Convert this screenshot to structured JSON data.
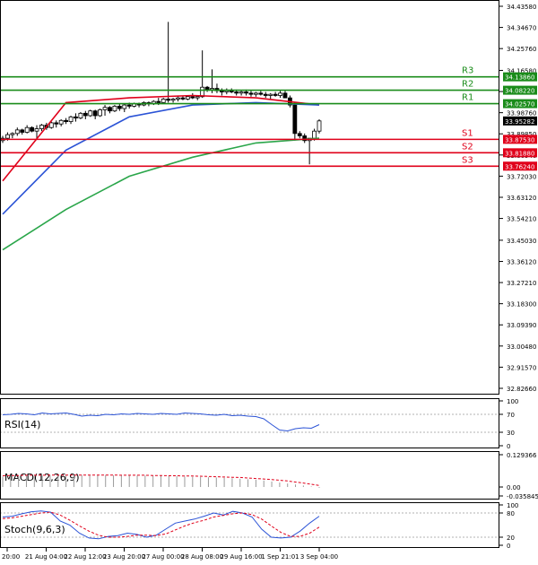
{
  "chart_data": [
    {
      "type": "candlestick",
      "price_axis_ticks": [
        "34.43580",
        "34.34670",
        "34.25760",
        "34.16580",
        "34.07670",
        "33.98760",
        "33.89850",
        "33.80940",
        "33.72030",
        "33.63120",
        "33.54210",
        "33.45030",
        "33.36120",
        "33.27210",
        "33.18300",
        "33.09390",
        "33.00480",
        "32.91570",
        "32.82660"
      ],
      "ylim": [
        32.8266,
        34.4358
      ],
      "current_price": {
        "value": 33.95282,
        "label": "33.95282"
      },
      "levels": [
        {
          "name": "R3",
          "value": 34.1386,
          "label": "34.13860",
          "color": "#1a8c1a"
        },
        {
          "name": "R2",
          "value": 34.0822,
          "label": "34.08220",
          "color": "#1a8c1a"
        },
        {
          "name": "R1",
          "value": 34.0257,
          "label": "34.02570",
          "color": "#1a8c1a"
        },
        {
          "name": "S1",
          "value": 33.8753,
          "label": "33.87530",
          "color": "#e0001a"
        },
        {
          "name": "S2",
          "value": 33.8188,
          "label": "33.81880",
          "color": "#e0001a"
        },
        {
          "name": "S3",
          "value": 33.7624,
          "label": "33.76240",
          "color": "#e0001a"
        }
      ],
      "x_tick_labels": [
        "20:00",
        "21 Aug 04:00",
        "22 Aug 12:00",
        "23 Aug 20:00",
        "27 Aug 00:00",
        "28 Aug 08:00",
        "29 Aug 16:00",
        "1 Sep 21:01",
        "3 Sep 04:00"
      ],
      "candles": [
        [
          33.87,
          33.89,
          33.86,
          33.88
        ],
        [
          33.88,
          33.905,
          33.87,
          33.895
        ],
        [
          33.895,
          33.905,
          33.88,
          33.9
        ],
        [
          33.9,
          33.925,
          33.89,
          33.915
        ],
        [
          33.915,
          33.92,
          33.895,
          33.905
        ],
        [
          33.905,
          33.935,
          33.9,
          33.925
        ],
        [
          33.925,
          33.93,
          33.905,
          33.91
        ],
        [
          33.91,
          33.935,
          33.88,
          33.92
        ],
        [
          33.92,
          33.94,
          33.91,
          33.935
        ],
        [
          33.935,
          33.945,
          33.915,
          33.925
        ],
        [
          33.925,
          33.95,
          33.92,
          33.945
        ],
        [
          33.945,
          33.955,
          33.925,
          33.94
        ],
        [
          33.94,
          33.96,
          33.93,
          33.955
        ],
        [
          33.955,
          33.965,
          33.94,
          33.95
        ],
        [
          33.95,
          33.975,
          33.94,
          33.97
        ],
        [
          33.97,
          33.985,
          33.95,
          33.965
        ],
        [
          33.965,
          33.99,
          33.96,
          33.985
        ],
        [
          33.985,
          33.995,
          33.96,
          33.975
        ],
        [
          33.975,
          34.0,
          33.97,
          33.995
        ],
        [
          33.995,
          34.0,
          33.96,
          33.975
        ],
        [
          33.975,
          34.005,
          33.97,
          34.0
        ],
        [
          34.0,
          34.02,
          33.975,
          34.01
        ],
        [
          34.01,
          34.015,
          33.985,
          33.995
        ],
        [
          33.995,
          34.02,
          33.99,
          34.015
        ],
        [
          34.015,
          34.025,
          33.995,
          34.005
        ],
        [
          34.005,
          34.025,
          33.99,
          34.02
        ],
        [
          34.02,
          34.03,
          34.005,
          34.015
        ],
        [
          34.015,
          34.03,
          34.01,
          34.025
        ],
        [
          34.025,
          34.03,
          34.01,
          34.02
        ],
        [
          34.02,
          34.035,
          34.015,
          34.03
        ],
        [
          34.03,
          34.035,
          34.015,
          34.025
        ],
        [
          34.025,
          34.04,
          34.02,
          34.035
        ],
        [
          34.035,
          34.05,
          34.02,
          34.03
        ],
        [
          34.03,
          34.05,
          34.025,
          34.045
        ],
        [
          34.045,
          34.37,
          34.03,
          34.04
        ],
        [
          34.04,
          34.05,
          34.03,
          34.045
        ],
        [
          34.045,
          34.06,
          34.035,
          34.05
        ],
        [
          34.05,
          34.06,
          34.04,
          34.045
        ],
        [
          34.045,
          34.06,
          34.04,
          34.055
        ],
        [
          34.055,
          34.07,
          34.045,
          34.05
        ],
        [
          34.05,
          34.06,
          34.04,
          34.055
        ],
        [
          34.055,
          34.25,
          34.05,
          34.095
        ],
        [
          34.095,
          34.1,
          34.075,
          34.085
        ],
        [
          34.085,
          34.17,
          34.07,
          34.09
        ],
        [
          34.09,
          34.11,
          34.07,
          34.08
        ],
        [
          34.08,
          34.09,
          34.06,
          34.075
        ],
        [
          34.075,
          34.09,
          34.065,
          34.08
        ],
        [
          34.08,
          34.09,
          34.07,
          34.075
        ],
        [
          34.075,
          34.085,
          34.06,
          34.07
        ],
        [
          34.07,
          34.08,
          34.06,
          34.075
        ],
        [
          34.075,
          34.085,
          34.06,
          34.07
        ],
        [
          34.07,
          34.08,
          34.055,
          34.065
        ],
        [
          34.065,
          34.075,
          34.055,
          34.07
        ],
        [
          34.07,
          34.08,
          34.06,
          34.065
        ],
        [
          34.065,
          34.075,
          34.05,
          34.06
        ],
        [
          34.06,
          34.07,
          34.045,
          34.065
        ],
        [
          34.065,
          34.075,
          34.055,
          34.06
        ],
        [
          34.06,
          34.08,
          34.05,
          34.07
        ],
        [
          34.07,
          34.08,
          34.06,
          34.05
        ],
        [
          34.05,
          34.06,
          34.01,
          34.02
        ],
        [
          34.02,
          34.03,
          33.87,
          33.9
        ],
        [
          33.9,
          33.91,
          33.88,
          33.89
        ],
        [
          33.89,
          33.9,
          33.86,
          33.87
        ],
        [
          33.87,
          33.88,
          33.77,
          33.88
        ],
        [
          33.88,
          33.92,
          33.87,
          33.91
        ],
        [
          33.91,
          33.96,
          33.9,
          33.953
        ]
      ],
      "moving_averages": [
        {
          "color": "#e0001a",
          "values": [
            33.7,
            34.03,
            34.05,
            34.06,
            34.05,
            34.02
          ]
        },
        {
          "color": "#2b53d6",
          "values": [
            33.56,
            33.83,
            33.97,
            34.02,
            34.03,
            34.02
          ]
        },
        {
          "color": "#2aa64a",
          "values": [
            33.41,
            33.58,
            33.72,
            33.8,
            33.86,
            33.88
          ]
        }
      ]
    },
    {
      "type": "line",
      "title": "RSI(14)",
      "ylim": [
        0,
        100
      ],
      "y_ticks": [
        "100",
        "70",
        "30",
        "0"
      ],
      "series": [
        {
          "color": "#2b53d6",
          "values": [
            69,
            70,
            72,
            71,
            69,
            73,
            71,
            72,
            73,
            70,
            66,
            68,
            67,
            70,
            69,
            71,
            70,
            72,
            71,
            70,
            72,
            71,
            70,
            73,
            72,
            71,
            69,
            68,
            70,
            67,
            68,
            66,
            65,
            60,
            47,
            35,
            33,
            38,
            40,
            39,
            47
          ]
        }
      ]
    },
    {
      "type": "bar",
      "title": "MACD(12,26,9)",
      "y_ticks": [
        "0.129366",
        "0.00",
        "-0.035845"
      ],
      "ylim": [
        -0.035845,
        0.129366
      ],
      "histogram": [
        0.042,
        0.043,
        0.044,
        0.045,
        0.045,
        0.046,
        0.046,
        0.047,
        0.047,
        0.047,
        0.048,
        0.048,
        0.048,
        0.048,
        0.047,
        0.047,
        0.047,
        0.046,
        0.046,
        0.045,
        0.045,
        0.044,
        0.043,
        0.042,
        0.041,
        0.04,
        0.039,
        0.038,
        0.037,
        0.035,
        0.033,
        0.031,
        0.029,
        0.026,
        0.022,
        0.018,
        0.014,
        0.01,
        0.006,
        0.002,
        -0.003
      ],
      "signal": [
        0.045,
        0.046,
        0.046,
        0.047,
        0.047,
        0.047,
        0.048,
        0.048,
        0.048,
        0.048,
        0.048,
        0.048,
        0.048,
        0.048,
        0.048,
        0.047,
        0.047,
        0.047,
        0.047,
        0.046,
        0.046,
        0.045,
        0.045,
        0.044,
        0.044,
        0.043,
        0.042,
        0.041,
        0.04,
        0.039,
        0.038,
        0.036,
        0.034,
        0.032,
        0.03,
        0.027,
        0.024,
        0.02,
        0.016,
        0.011,
        0.006
      ]
    },
    {
      "type": "line",
      "title": "Stoch(9,6,3)",
      "ylim": [
        0,
        100
      ],
      "y_ticks": [
        "100",
        "80",
        "20",
        "0"
      ],
      "series": [
        {
          "color": "#2b53d6",
          "values": [
            70,
            72,
            78,
            83,
            85,
            82,
            60,
            50,
            30,
            18,
            16,
            22,
            24,
            30,
            27,
            20,
            25,
            40,
            55,
            60,
            65,
            72,
            80,
            75,
            84,
            80,
            70,
            40,
            20,
            18,
            20,
            35,
            55,
            72
          ]
        },
        {
          "color": "#e0001a",
          "values": [
            66,
            68,
            72,
            76,
            80,
            82,
            75,
            62,
            48,
            35,
            25,
            20,
            20,
            22,
            25,
            25,
            24,
            28,
            38,
            48,
            56,
            62,
            70,
            74,
            78,
            80,
            76,
            65,
            48,
            32,
            22,
            22,
            30,
            45
          ]
        }
      ]
    }
  ]
}
